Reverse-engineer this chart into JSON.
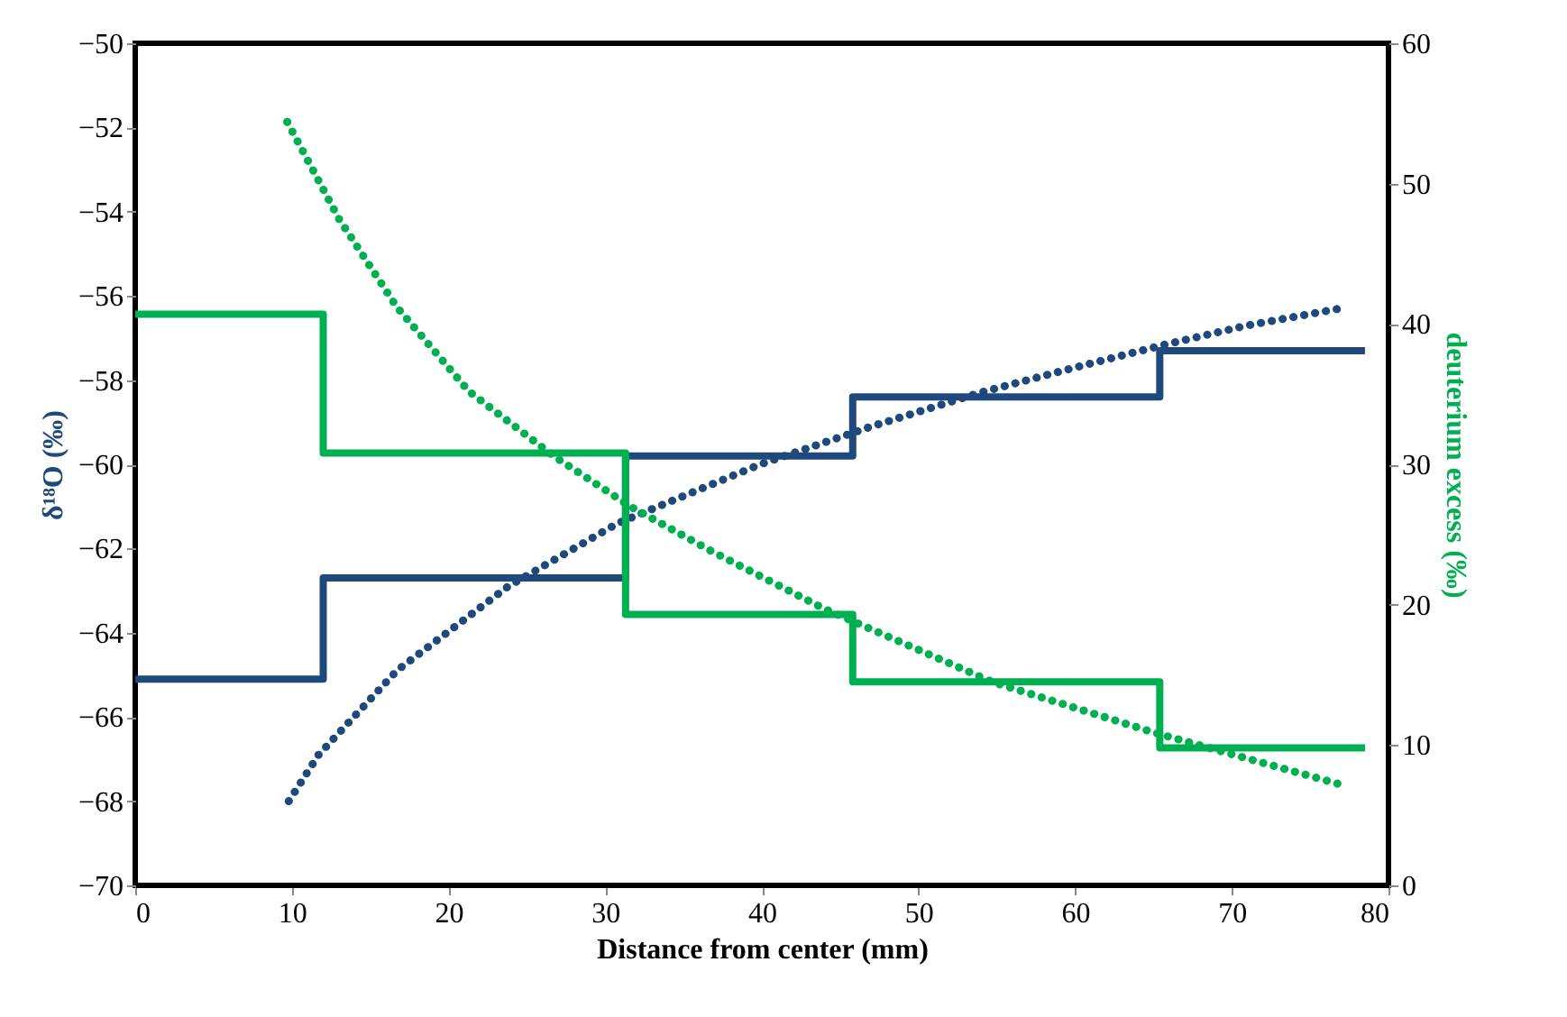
{
  "chart_data": {
    "type": "line",
    "xlabel": "Distance from center (mm)",
    "ylabel": "δ¹⁸O (‰)",
    "y2label": "deuterium excess (‰)",
    "xlim": [
      0,
      80
    ],
    "xticks": [
      0,
      10,
      20,
      30,
      40,
      50,
      60,
      70,
      80
    ],
    "ylim": [
      -70,
      -50
    ],
    "yticks": [
      -70,
      -68,
      -66,
      -64,
      -62,
      -60,
      -58,
      -56,
      -54,
      -52,
      -50
    ],
    "y2lim": [
      0,
      60
    ],
    "y2ticks": [
      0,
      10,
      20,
      30,
      40,
      50,
      60
    ],
    "grid": false,
    "marker": "none",
    "series": [
      {
        "type": "step",
        "axis": "y",
        "color": "#1f497d",
        "line_style": "solid",
        "x": [
          0,
          12,
          31.3,
          45.8,
          65.4,
          78.5
        ],
        "values": [
          -65.1,
          -62.7,
          -59.8,
          -58.4,
          -57.3,
          -57.3
        ]
      },
      {
        "type": "step",
        "axis": "y2",
        "color": "#00b050",
        "line_style": "solid",
        "x": [
          0,
          12,
          31.3,
          45.8,
          65.4,
          78.5
        ],
        "values": [
          40.7,
          30.8,
          19.3,
          14.5,
          9.8,
          9.8
        ]
      },
      {
        "axis": "y",
        "color": "#1f497d",
        "line_style": "dotted",
        "x": [
          9.8,
          11.7,
          16.7,
          23.8,
          30.8,
          39.9,
          47,
          53.9,
          60,
          65.8,
          71,
          76.9
        ],
        "values": [
          -68,
          -66.9,
          -64.9,
          -62.9,
          -61.4,
          -60.0,
          -59.1,
          -58.3,
          -57.7,
          -57.15,
          -56.7,
          -56.3
        ]
      },
      {
        "axis": "y2",
        "color": "#00b050",
        "line_style": "dotted",
        "x": [
          9.7,
          13,
          16.7,
          21.3,
          26.7,
          31.6,
          36.8,
          44,
          54.7,
          65,
          76.9
        ],
        "values": [
          54.4,
          47.5,
          41.2,
          35.2,
          30.6,
          27.0,
          23.8,
          19.7,
          14.5,
          10.9,
          7.2
        ]
      }
    ]
  }
}
